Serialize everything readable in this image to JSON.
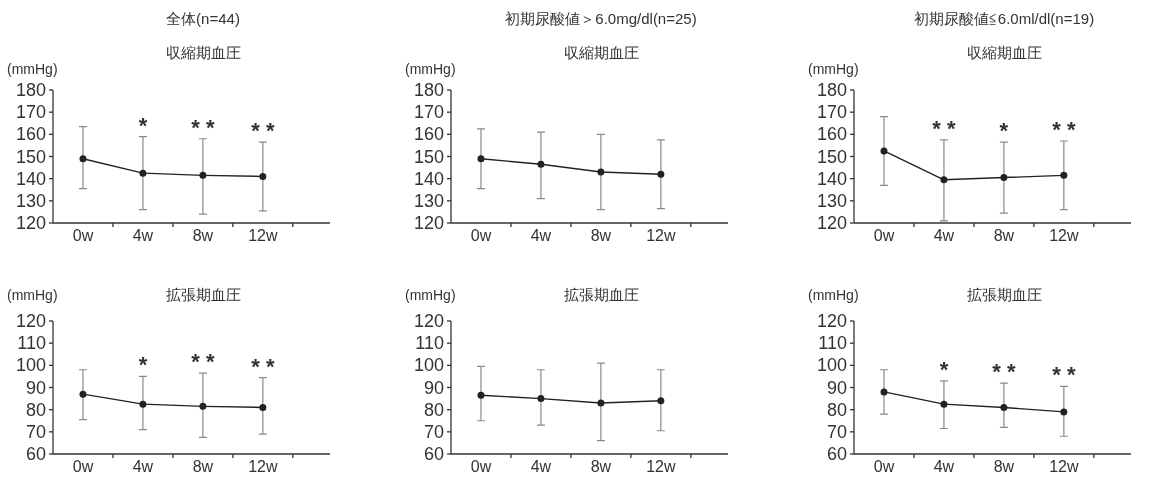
{
  "chart_data": [
    {
      "type": "line",
      "title": "全体(n=44)",
      "subtitle": "収縮期血圧",
      "ylabel": "(mmHg)",
      "categories": [
        "0w",
        "4w",
        "8w",
        "12w"
      ],
      "color": "#222222",
      "marker": "circle",
      "values": [
        149,
        142.5,
        141.5,
        141
      ],
      "errors": [
        [
          135.5,
          163.5
        ],
        [
          126,
          159
        ],
        [
          124,
          158
        ],
        [
          125.5,
          156.5
        ]
      ],
      "value_labels": [
        null,
        "*",
        "* *",
        "* *"
      ],
      "ylim": [
        120,
        180
      ],
      "yticks": [
        120,
        130,
        140,
        150,
        160,
        170,
        180
      ]
    },
    {
      "type": "line",
      "title": "初期尿酸値＞6.0mg/dl(n=25)",
      "subtitle": "収縮期血圧",
      "ylabel": "(mmHg)",
      "categories": [
        "0w",
        "4w",
        "8w",
        "12w"
      ],
      "color": "#222222",
      "marker": "circle",
      "values": [
        149,
        146.5,
        143,
        142
      ],
      "errors": [
        [
          135.5,
          162.5
        ],
        [
          131,
          161
        ],
        [
          126,
          160
        ],
        [
          126.5,
          157.5
        ]
      ],
      "ylim": [
        120,
        180
      ],
      "yticks": [
        120,
        130,
        140,
        150,
        160,
        170,
        180
      ]
    },
    {
      "type": "line",
      "title": "初期尿酸値≦6.0ml/dl(n=19)",
      "subtitle": "収縮期血圧",
      "ylabel": "(mmHg)",
      "categories": [
        "0w",
        "4w",
        "8w",
        "12w"
      ],
      "color": "#222222",
      "marker": "circle",
      "values": [
        152.5,
        139.5,
        140.5,
        141.5
      ],
      "errors": [
        [
          137,
          168
        ],
        [
          121,
          157.5
        ],
        [
          124.5,
          156.5
        ],
        [
          126,
          157
        ]
      ],
      "value_labels": [
        null,
        "* *",
        "*",
        "* *"
      ],
      "ylim": [
        120,
        180
      ],
      "yticks": [
        120,
        130,
        140,
        150,
        160,
        170,
        180
      ]
    },
    {
      "type": "line",
      "title": "拡張期血圧",
      "ylabel": "(mmHg)",
      "categories": [
        "0w",
        "4w",
        "8w",
        "12w"
      ],
      "color": "#222222",
      "marker": "circle",
      "values": [
        87,
        82.5,
        81.5,
        81
      ],
      "errors": [
        [
          75.5,
          98
        ],
        [
          71,
          95
        ],
        [
          67.5,
          96.5
        ],
        [
          69,
          94.5
        ]
      ],
      "value_labels": [
        null,
        "*",
        "* *",
        "* *"
      ],
      "ylim": [
        60,
        120
      ],
      "yticks": [
        60,
        70,
        80,
        90,
        100,
        110,
        120
      ]
    },
    {
      "type": "line",
      "title": "拡張期血圧",
      "ylabel": "(mmHg)",
      "categories": [
        "0w",
        "4w",
        "8w",
        "12w"
      ],
      "color": "#222222",
      "marker": "circle",
      "values": [
        86.5,
        85,
        83,
        84
      ],
      "errors": [
        [
          75,
          99.5
        ],
        [
          73,
          98
        ],
        [
          66,
          101
        ],
        [
          70.5,
          98
        ]
      ],
      "ylim": [
        60,
        120
      ],
      "yticks": [
        60,
        70,
        80,
        90,
        100,
        110,
        120
      ]
    },
    {
      "type": "line",
      "title": "拡張期血圧",
      "ylabel": "(mmHg)",
      "categories": [
        "0w",
        "4w",
        "8w",
        "12w"
      ],
      "color": "#222222",
      "marker": "circle",
      "values": [
        88,
        82.5,
        81,
        79
      ],
      "errors": [
        [
          78,
          98
        ],
        [
          71.5,
          93
        ],
        [
          72,
          92
        ],
        [
          68,
          90.5
        ]
      ],
      "value_labels": [
        null,
        "*",
        "* *",
        "* *"
      ],
      "ylim": [
        60,
        120
      ],
      "yticks": [
        60,
        70,
        80,
        90,
        100,
        110,
        120
      ]
    }
  ]
}
